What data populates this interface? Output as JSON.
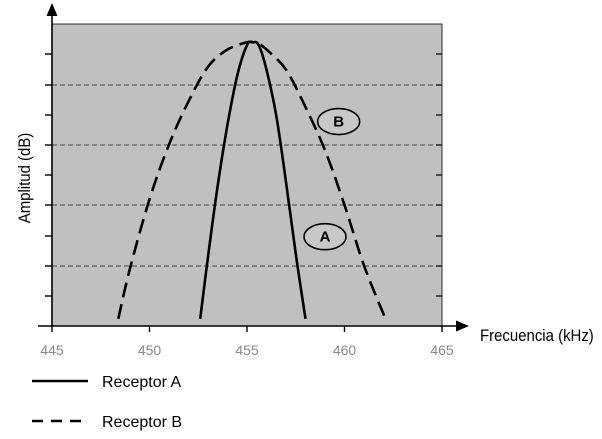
{
  "chart_data": {
    "type": "line",
    "xlabel": "Frecuencia (kHz)",
    "ylabel": "Amplitud (dB)",
    "xlim": [
      445,
      465
    ],
    "ylim": [
      0,
      10
    ],
    "x_ticks": [
      "445",
      "450",
      "455",
      "460",
      "465"
    ],
    "grid": "horizontal dashed",
    "plot_background": "#c0c0c0",
    "series": [
      {
        "name": "Receptor A",
        "style": "solid",
        "x": [
          452.6,
          453.0,
          453.5,
          454.0,
          454.5,
          455.0,
          455.3,
          455.6,
          456.0,
          456.5,
          457.0,
          457.5,
          458.0
        ],
        "y": [
          0.25,
          2.4,
          4.9,
          7.0,
          8.7,
          9.75,
          9.85,
          9.75,
          8.9,
          7.3,
          5.0,
          2.5,
          0.25
        ]
      },
      {
        "name": "Receptor B",
        "style": "dashed",
        "x": [
          448.4,
          449.0,
          450.0,
          451.0,
          452.0,
          453.0,
          454.0,
          455.0,
          455.3,
          455.6,
          456.0,
          457.0,
          458.0,
          459.0,
          460.0,
          461.0,
          462.1
        ],
        "y": [
          0.25,
          2.0,
          4.4,
          6.3,
          7.8,
          9.0,
          9.6,
          9.85,
          9.85,
          9.8,
          9.6,
          8.9,
          7.6,
          6.1,
          4.2,
          2.1,
          0.25
        ]
      }
    ],
    "annotations": [
      {
        "text": "A",
        "x": 459.0,
        "y": 3.1
      },
      {
        "text": "B",
        "x": 459.7,
        "y": 7.1
      }
    ],
    "legend": {
      "position": "bottom-left",
      "entries": [
        "Receptor A",
        "Receptor B"
      ]
    }
  }
}
